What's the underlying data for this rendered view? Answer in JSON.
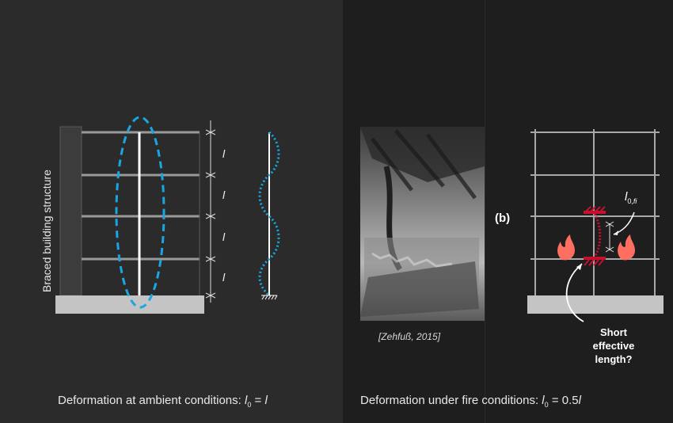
{
  "left": {
    "vertical_label": "Braced building structure",
    "dim_label": "l",
    "caption_prefix": "Deformation at ambient conditions: ",
    "caption_l": "l",
    "caption_sub": "0",
    "caption_eq": " = ",
    "caption_rhs": "l"
  },
  "right": {
    "source": "[Zehfuß, 2015]",
    "panel_label": "(b)",
    "l0fi_main": "l",
    "l0fi_sub_0": "0,",
    "l0fi_sub_fi": "fi",
    "question_line1": "Short",
    "question_line2": "effective",
    "question_line3": "length?",
    "caption_prefix": "Deformation under fire conditions: ",
    "caption_l": "l",
    "caption_sub": "0",
    "caption_eq": " = 0.5",
    "caption_rhs": "l"
  },
  "colors": {
    "accent_blue": "#1aa6e0",
    "fire_red": "#c8102e",
    "flame": "#ff6f61",
    "frame_gray": "#a8a8a8",
    "base_gray": "#c4c4c4"
  },
  "icons": [
    "flame-icon",
    "fixed-support-icon",
    "dimension-tick-icon"
  ]
}
